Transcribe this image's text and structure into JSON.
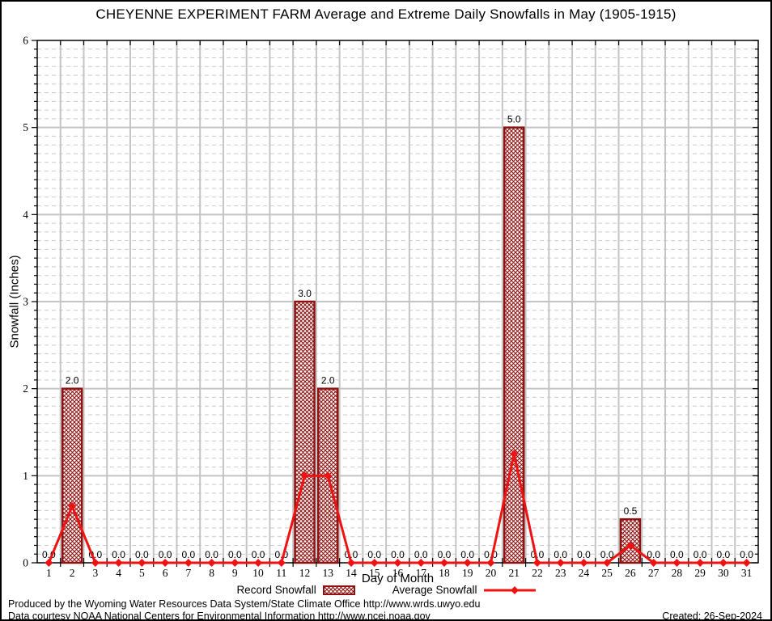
{
  "title": "CHEYENNE EXPERIMENT FARM Average and Extreme Daily Snowfalls in May (1905-1915)",
  "axes": {
    "ylabel": "Snowfall (Inches)",
    "xlabel": "Day of Month"
  },
  "legend": {
    "record_label": "Record Snowfall",
    "average_label": "Average Snowfall"
  },
  "footer": {
    "line1": "Produced by the Wyoming Water Resources Data System/State Climate Office http://www.wrds.uwyo.edu",
    "line2": "Data courtesy NOAA National Centers for Environmental Information http://www.ncei.noaa.gov",
    "created": "Created: 26-Sep-2024"
  },
  "chart_data": {
    "type": "bar",
    "title": "CHEYENNE EXPERIMENT FARM Average and Extreme Daily Snowfalls in May (1905-1915)",
    "xlabel": "Day of Month",
    "ylabel": "Snowfall (Inches)",
    "x": [
      1,
      2,
      3,
      4,
      5,
      6,
      7,
      8,
      9,
      10,
      11,
      12,
      13,
      14,
      15,
      16,
      17,
      18,
      19,
      20,
      21,
      22,
      23,
      24,
      25,
      26,
      27,
      28,
      29,
      30,
      31
    ],
    "series": [
      {
        "name": "Record Snowfall",
        "type": "bar",
        "color": "#8e1212",
        "values": [
          0.0,
          2.0,
          0.0,
          0.0,
          0.0,
          0.0,
          0.0,
          0.0,
          0.0,
          0.0,
          0.0,
          3.0,
          2.0,
          0.0,
          0.0,
          0.0,
          0.0,
          0.0,
          0.0,
          0.0,
          5.0,
          0.0,
          0.0,
          0.0,
          0.0,
          0.5,
          0.0,
          0.0,
          0.0,
          0.0,
          0.0
        ],
        "value_labels": [
          "0.0",
          "2.0",
          "0.0",
          "0.0",
          "0.0",
          "0.0",
          "0.0",
          "0.0",
          "0.0",
          "0.0",
          "0.0",
          "3.0",
          "2.0",
          "0.0",
          "0.0",
          "0.0",
          "0.0",
          "0.0",
          "0.0",
          "0.0",
          "5.0",
          "0.0",
          "0.0",
          "0.0",
          "0.0",
          "0.5",
          "0.0",
          "0.0",
          "0.0",
          "0.0",
          "0.0"
        ]
      },
      {
        "name": "Average Snowfall",
        "type": "line",
        "color": "#ee1212",
        "values": [
          0.0,
          0.65,
          0.0,
          0.0,
          0.0,
          0.0,
          0.0,
          0.0,
          0.0,
          0.0,
          0.0,
          1.0,
          1.0,
          0.0,
          0.0,
          0.0,
          0.0,
          0.0,
          0.0,
          0.0,
          1.25,
          0.0,
          0.0,
          0.0,
          0.0,
          0.2,
          0.0,
          0.0,
          0.0,
          0.0,
          0.0
        ]
      }
    ],
    "ylim": [
      0,
      6
    ],
    "ytick_major": 1,
    "ytick_minor": 0.1,
    "grid": {
      "horizontal_major": "solid",
      "horizontal_minor": "dashed",
      "vertical_major": "solid",
      "grid_major_color": "#c4c4c4",
      "grid_minor_color": "#c9c9c9"
    },
    "legend_position": "bottom",
    "bar_value_labels_shown": true
  }
}
